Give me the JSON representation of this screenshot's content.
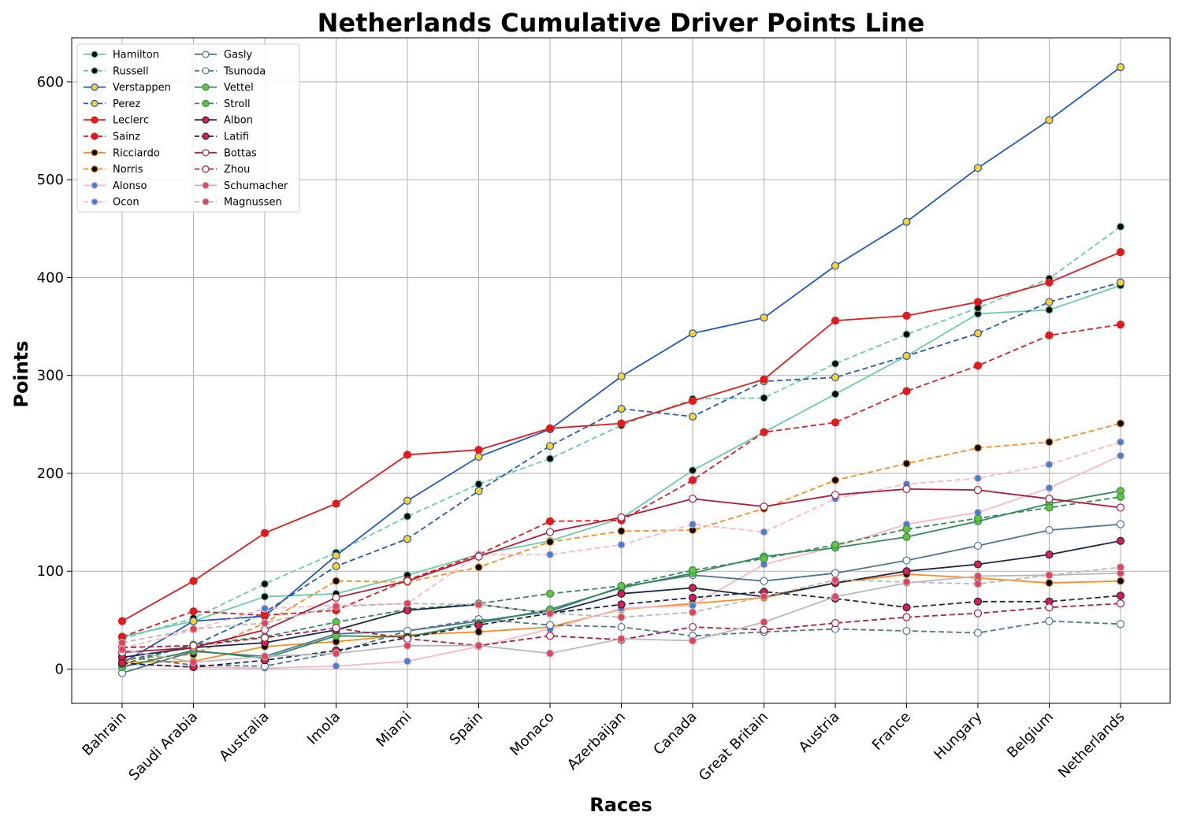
{
  "chart_data": {
    "type": "line",
    "title": "Netherlands Cumulative Driver Points Line",
    "xlabel": "Races",
    "ylabel": "Points",
    "categories": [
      "Bahrain",
      "Saudi Arabia",
      "Australia",
      "Imola",
      "Miami",
      "Spain",
      "Monaco",
      "Azerbaijan",
      "Canada",
      "Great Britain",
      "Austria",
      "France",
      "Hungary",
      "Belgium",
      "Netherlands"
    ],
    "ylim": [
      -35,
      645
    ],
    "yticks": [
      0,
      100,
      200,
      300,
      400,
      500,
      600
    ],
    "grid": true,
    "legend_position": "top-left",
    "legend_columns": 2,
    "series": [
      {
        "name": "Hamilton",
        "color": "#66cdaa",
        "dash": "solid",
        "marker_fill": "#000000",
        "values": [
          33,
          49,
          74,
          77,
          96,
          117,
          131,
          154,
          203,
          242,
          281,
          320,
          363,
          367,
          392
        ]
      },
      {
        "name": "Russell",
        "color": "#66cdaa",
        "dash": "dashed",
        "marker_fill": "#000000",
        "values": [
          31,
          52,
          87,
          119,
          156,
          189,
          215,
          249,
          276,
          277,
          312,
          342,
          369,
          399,
          452
        ]
      },
      {
        "name": "Verstappen",
        "color": "#1f58c4",
        "dash": "solid",
        "marker_fill": "#ffd21f",
        "values": [
          6,
          49,
          54,
          116,
          172,
          217,
          245,
          299,
          343,
          359,
          412,
          457,
          512,
          561,
          615
        ]
      },
      {
        "name": "Perez",
        "color": "#1f58c4",
        "dash": "dashed",
        "marker_fill": "#ffd21f",
        "values": [
          8,
          24,
          58,
          105,
          133,
          182,
          228,
          266,
          258,
          294,
          298,
          320,
          343,
          375,
          395
        ]
      },
      {
        "name": "Leclerc",
        "color": "#e31a1c",
        "dash": "solid",
        "marker_fill": "#e31a1c",
        "values": [
          49,
          90,
          139,
          169,
          219,
          224,
          246,
          251,
          274,
          296,
          356,
          361,
          375,
          395,
          426
        ]
      },
      {
        "name": "Sainz",
        "color": "#e31a1c",
        "dash": "dashed",
        "marker_fill": "#e31a1c",
        "values": [
          33,
          59,
          55,
          60,
          91,
          117,
          151,
          152,
          193,
          242,
          252,
          284,
          310,
          341,
          352
        ]
      },
      {
        "name": "Ricciardo",
        "color": "#ff8c1a",
        "dash": "solid",
        "marker_fill": "#000000",
        "values": [
          7,
          8,
          23,
          28,
          35,
          38,
          43,
          61,
          67,
          73,
          88,
          97,
          93,
          88,
          90
        ]
      },
      {
        "name": "Norris",
        "color": "#ff8c1a",
        "dash": "dashed",
        "marker_fill": "#000000",
        "values": [
          10,
          15,
          47,
          90,
          89,
          104,
          130,
          141,
          142,
          164,
          193,
          210,
          226,
          232,
          251
        ]
      },
      {
        "name": "Alonso",
        "color": "#ffb6c1",
        "dash": "solid",
        "marker_fill": "#3a84d6",
        "values": [
          5,
          2,
          1,
          3,
          8,
          23,
          41,
          62,
          65,
          107,
          125,
          148,
          160,
          185,
          218
        ]
      },
      {
        "name": "Ocon",
        "color": "#ffb6c1",
        "dash": "dashed",
        "marker_fill": "#3a84d6",
        "values": [
          21,
          40,
          62,
          65,
          67,
          117,
          117,
          127,
          148,
          140,
          174,
          189,
          195,
          209,
          232
        ]
      },
      {
        "name": "Gasly",
        "color": "#4a7694",
        "dash": "solid",
        "marker_fill": "#ffffff",
        "values": [
          -4,
          18,
          13,
          36,
          39,
          49,
          59,
          84,
          96,
          90,
          98,
          111,
          126,
          142,
          148
        ]
      },
      {
        "name": "Tsunoda",
        "color": "#4a7694",
        "dash": "dashed",
        "marker_fill": "#ffffff",
        "values": [
          13,
          4,
          3,
          17,
          39,
          51,
          45,
          43,
          34,
          38,
          41,
          39,
          37,
          49,
          46
        ]
      },
      {
        "name": "Vettel",
        "color": "#2e8b57",
        "dash": "solid",
        "marker_fill": "#66c33a",
        "values": [
          2,
          19,
          11,
          34,
          33,
          47,
          61,
          83,
          98,
          115,
          124,
          135,
          151,
          169,
          182
        ]
      },
      {
        "name": "Stroll",
        "color": "#2e8b57",
        "dash": "dashed",
        "marker_fill": "#66c33a",
        "values": [
          5,
          25,
          33,
          48,
          61,
          67,
          77,
          85,
          101,
          113,
          127,
          143,
          154,
          165,
          176
        ]
      },
      {
        "name": "Albon",
        "color": "#1a2847",
        "dash": "solid",
        "marker_fill": "#e31a4c",
        "values": [
          12,
          22,
          27,
          40,
          60,
          66,
          57,
          77,
          83,
          74,
          88,
          100,
          107,
          117,
          131
        ]
      },
      {
        "name": "Latifi",
        "color": "#1a2847",
        "dash": "dashed",
        "marker_fill": "#e31a4c",
        "values": [
          6,
          2,
          9,
          19,
          32,
          45,
          57,
          66,
          73,
          79,
          72,
          63,
          69,
          69,
          75
        ]
      },
      {
        "name": "Bottas",
        "color": "#b51a3a",
        "dash": "solid",
        "marker_fill": "#ffffff",
        "values": [
          17,
          22,
          40,
          73,
          90,
          115,
          140,
          155,
          174,
          166,
          178,
          184,
          183,
          174,
          165
        ]
      },
      {
        "name": "Zhou",
        "color": "#b51a3a",
        "dash": "dashed",
        "marker_fill": "#ffffff",
        "values": [
          22,
          24,
          32,
          42,
          31,
          24,
          34,
          30,
          43,
          40,
          47,
          53,
          57,
          63,
          67
        ]
      },
      {
        "name": "Schumacher",
        "color": "#b8b8b8",
        "dash": "solid",
        "marker_fill": "#e8405a",
        "values": [
          20,
          7,
          13,
          16,
          24,
          24,
          16,
          31,
          29,
          48,
          74,
          88,
          95,
          96,
          98
        ]
      },
      {
        "name": "Magnussen",
        "color": "#b8b8b8",
        "dash": "dashed",
        "marker_fill": "#e8405a",
        "values": [
          27,
          41,
          47,
          64,
          67,
          66,
          57,
          53,
          58,
          74,
          91,
          89,
          87,
          96,
          104
        ]
      }
    ]
  }
}
